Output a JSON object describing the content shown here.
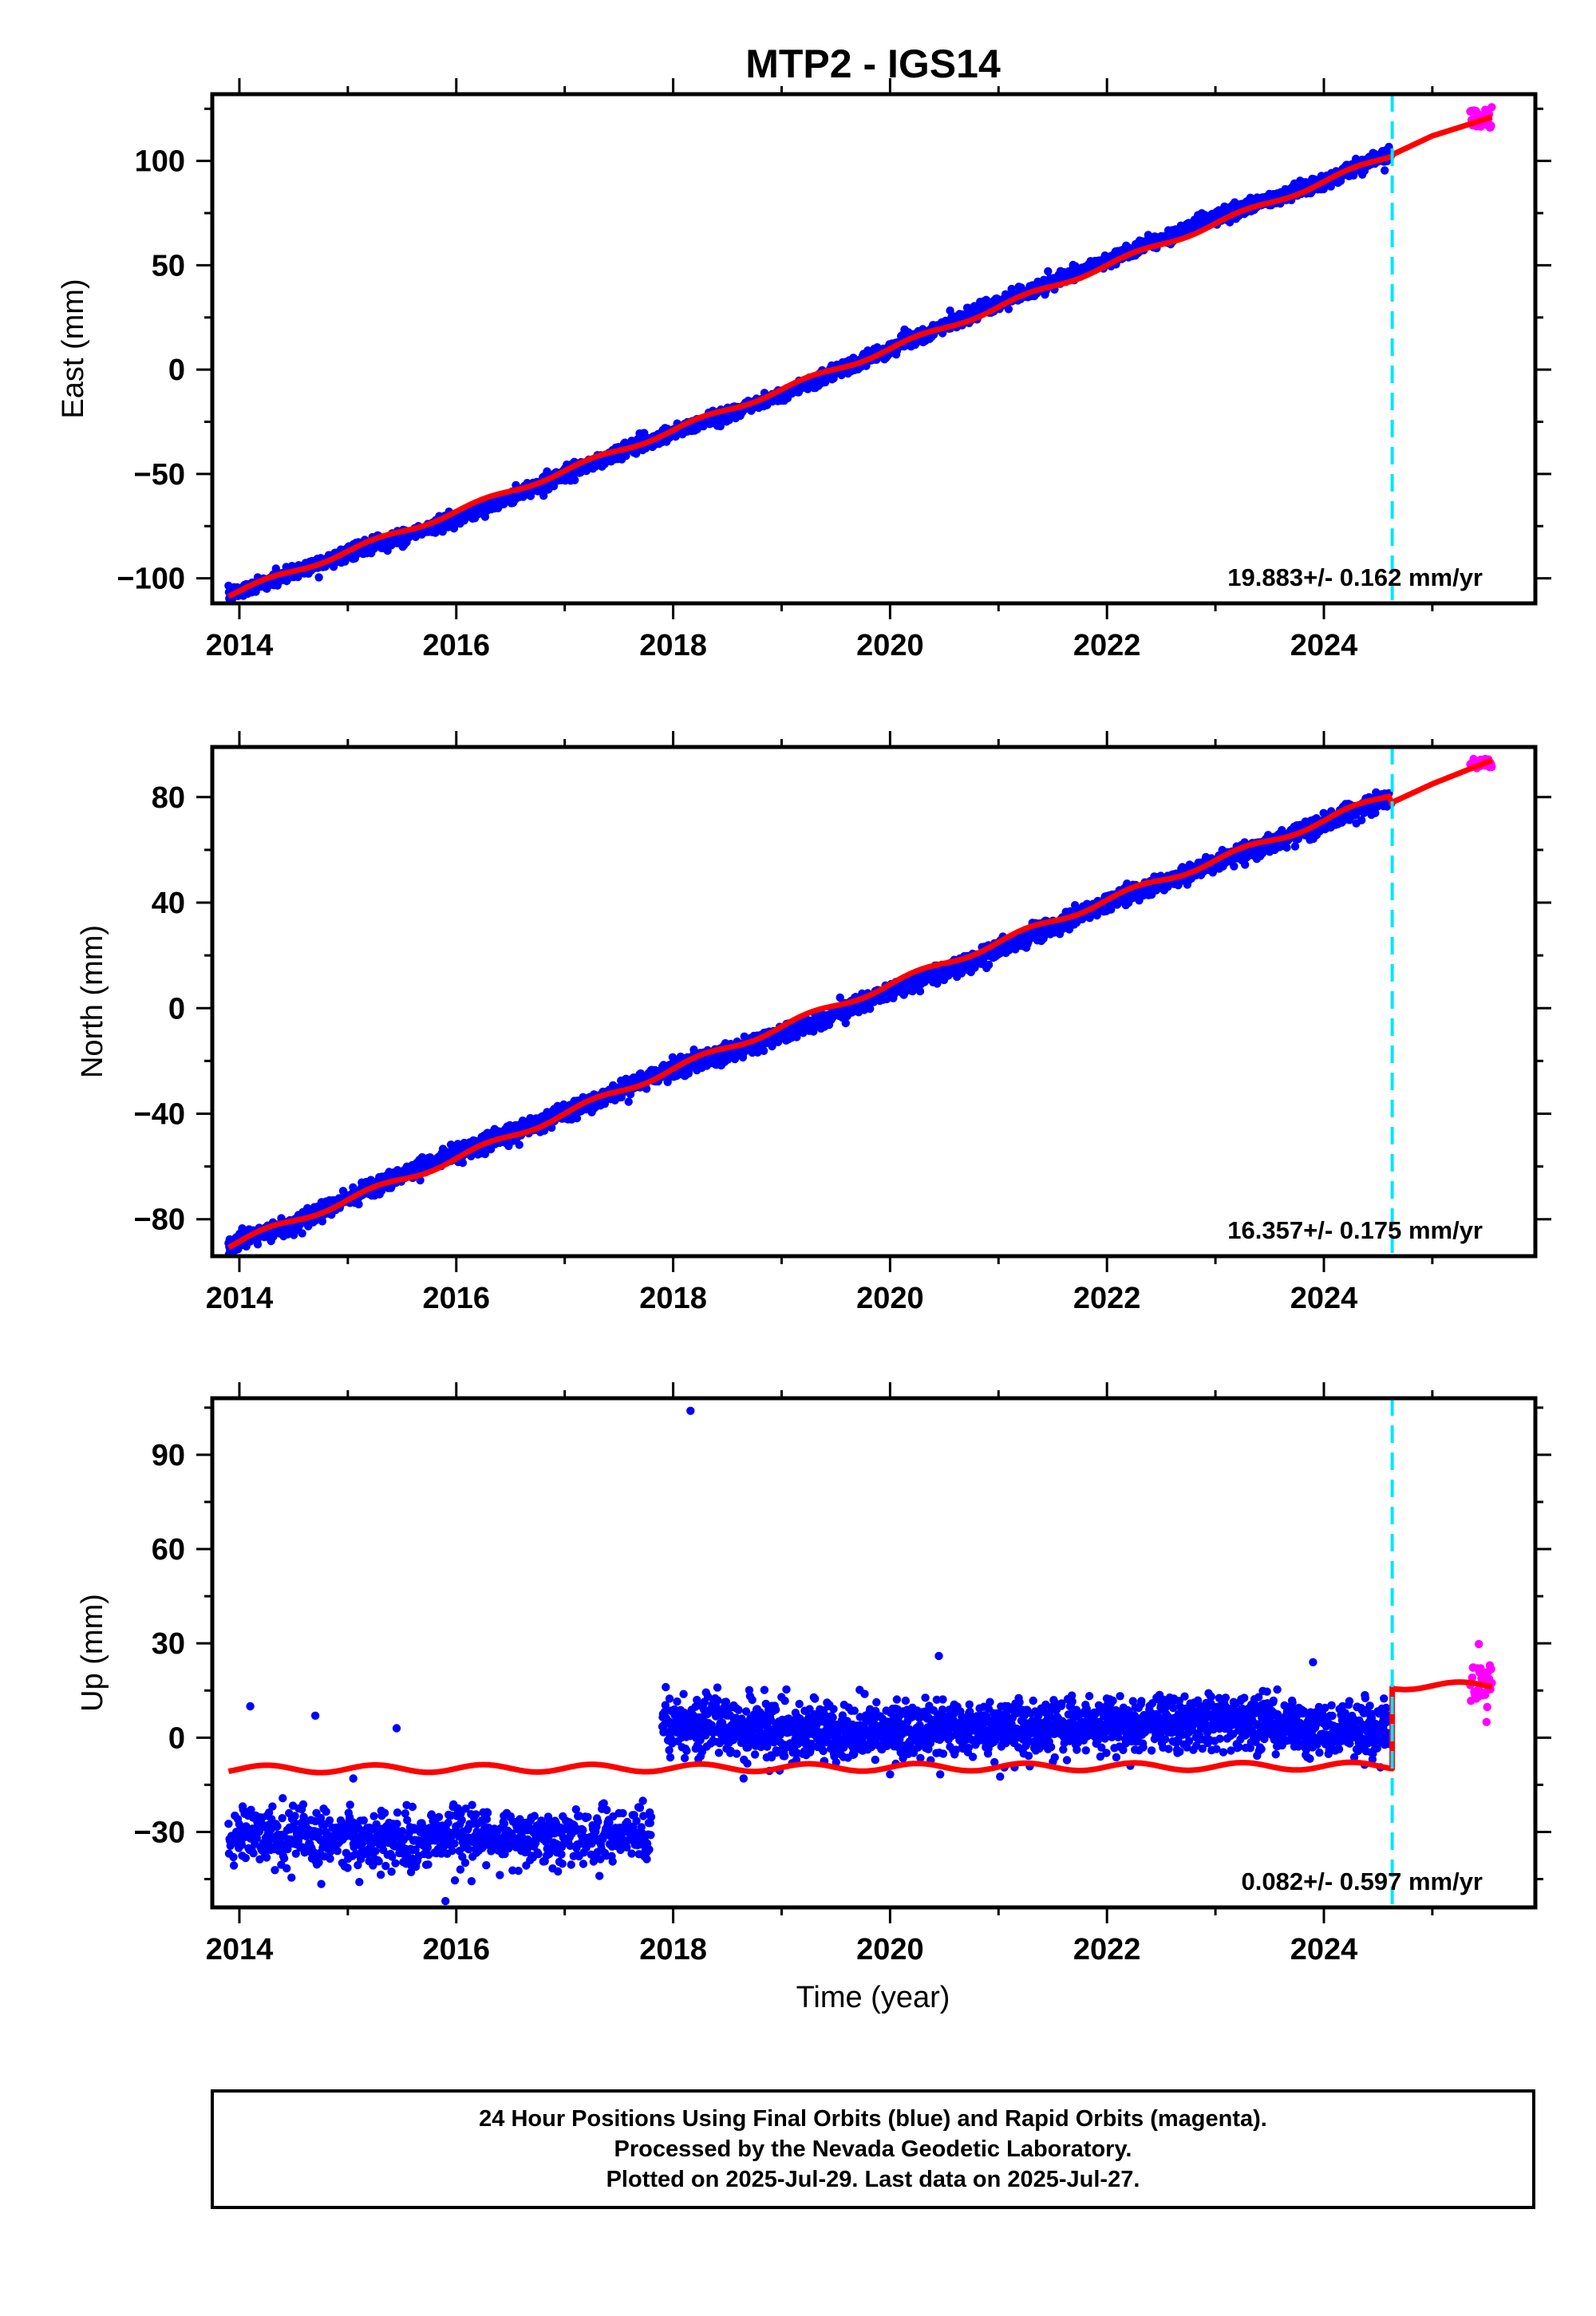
{
  "title": "MTP2 - IGS14",
  "xlabel": "Time (year)",
  "colors": {
    "final": "#0000ff",
    "rapid": "#ff00ff",
    "model": "#ff0000",
    "marker": "#00e5ff"
  },
  "footer": {
    "line1": "24 Hour Positions Using Final Orbits (blue) and Rapid Orbits (magenta).",
    "line2": "Processed by the Nevada Geodetic Laboratory.",
    "line3": "Plotted on 2025-Jul-29. Last data on 2025-Jul-27."
  },
  "chart_data": [
    {
      "type": "scatter",
      "ylabel": "East (mm)",
      "rate_label": "19.883+/- 0.162 mm/yr",
      "xlim": [
        2013.75,
        2025.95
      ],
      "ylim": [
        -112,
        132
      ],
      "xticks": [
        2014,
        2016,
        2018,
        2020,
        2022,
        2024
      ],
      "yticks": [
        -100,
        -50,
        0,
        50,
        100
      ],
      "marker_x": 2024.63,
      "series": [
        {
          "name": "Final Orbits (blue)",
          "x": [
            2013.9,
            2014.5,
            2015.0,
            2016.0,
            2017.0,
            2018.0,
            2019.0,
            2020.0,
            2021.0,
            2022.0,
            2023.0,
            2024.0,
            2024.6
          ],
          "y": [
            -108,
            -97,
            -88,
            -72,
            -50,
            -30,
            -12,
            10,
            32,
            52,
            73,
            90,
            104
          ]
        },
        {
          "name": "Rapid Orbits (magenta)",
          "x": [
            2025.35,
            2025.55
          ],
          "y": [
            116,
            126
          ]
        },
        {
          "name": "Model",
          "x": [
            2013.9,
            2016.0,
            2018.0,
            2020.0,
            2022.0,
            2024.0,
            2024.63,
            2025.0,
            2025.55
          ],
          "y": [
            -108,
            -68,
            -29,
            10,
            50,
            90,
            103,
            112,
            121
          ]
        }
      ]
    },
    {
      "type": "scatter",
      "ylabel": "North (mm)",
      "rate_label": "16.357+/- 0.175 mm/yr",
      "xlim": [
        2013.75,
        2025.95
      ],
      "ylim": [
        -94,
        99
      ],
      "xticks": [
        2014,
        2016,
        2018,
        2020,
        2022,
        2024
      ],
      "yticks": [
        -80,
        -40,
        0,
        40,
        80
      ],
      "marker_x": 2024.63,
      "series": [
        {
          "name": "Final Orbits (blue)",
          "x": [
            2013.9,
            2014.5,
            2015.0,
            2016.0,
            2017.0,
            2018.0,
            2019.0,
            2020.0,
            2021.0,
            2022.0,
            2023.0,
            2024.0,
            2024.6
          ],
          "y": [
            -90,
            -82,
            -72,
            -55,
            -40,
            -23,
            -10,
            6,
            22,
            40,
            55,
            70,
            80
          ]
        },
        {
          "name": "Rapid Orbits (magenta)",
          "x": [
            2025.35,
            2025.55
          ],
          "y": [
            91,
            95
          ]
        },
        {
          "name": "Model",
          "x": [
            2013.9,
            2016.0,
            2018.0,
            2020.0,
            2022.0,
            2024.0,
            2024.6,
            2024.63,
            2025.0,
            2025.55
          ],
          "y": [
            -90,
            -57,
            -23,
            9,
            41,
            71,
            81,
            78,
            85,
            94
          ]
        }
      ]
    },
    {
      "type": "scatter",
      "ylabel": "Up (mm)",
      "rate_label": "0.082+/- 0.597 mm/yr",
      "xlim": [
        2013.75,
        2025.95
      ],
      "ylim": [
        -54,
        108
      ],
      "xticks": [
        2014,
        2016,
        2018,
        2020,
        2022,
        2024
      ],
      "yticks": [
        -30,
        0,
        30,
        60,
        90
      ],
      "marker_x": 2024.63,
      "series": [
        {
          "name": "Final Orbits (blue) before 2017.85",
          "x": [
            2013.9,
            2014.5,
            2015.0,
            2016.0,
            2017.0,
            2017.8
          ],
          "y": [
            -30,
            -32,
            -33,
            -31,
            -32,
            -30
          ]
        },
        {
          "name": "Final Orbits (blue) after 2017.85",
          "x": [
            2017.9,
            2019.0,
            2020.0,
            2021.0,
            2022.0,
            2023.0,
            2024.0,
            2024.6
          ],
          "y": [
            5,
            2,
            2,
            3,
            4,
            5,
            3,
            3
          ]
        },
        {
          "name": "Outliers",
          "x": [
            2014.1,
            2014.7,
            2015.05,
            2015.45,
            2015.9,
            2018.16,
            2020.45,
            2023.9
          ],
          "y": [
            10,
            7,
            -13,
            3,
            -52,
            104,
            26,
            24
          ]
        },
        {
          "name": "Rapid Orbits (magenta)",
          "x": [
            2025.35,
            2025.45,
            2025.55
          ],
          "y": [
            10,
            20,
            38
          ]
        },
        {
          "name": "Model",
          "x": [
            2013.9,
            2017.8,
            2024.63,
            2024.63,
            2025.55
          ],
          "y": [
            -10,
            -10,
            -9,
            16,
            17
          ]
        }
      ]
    }
  ]
}
